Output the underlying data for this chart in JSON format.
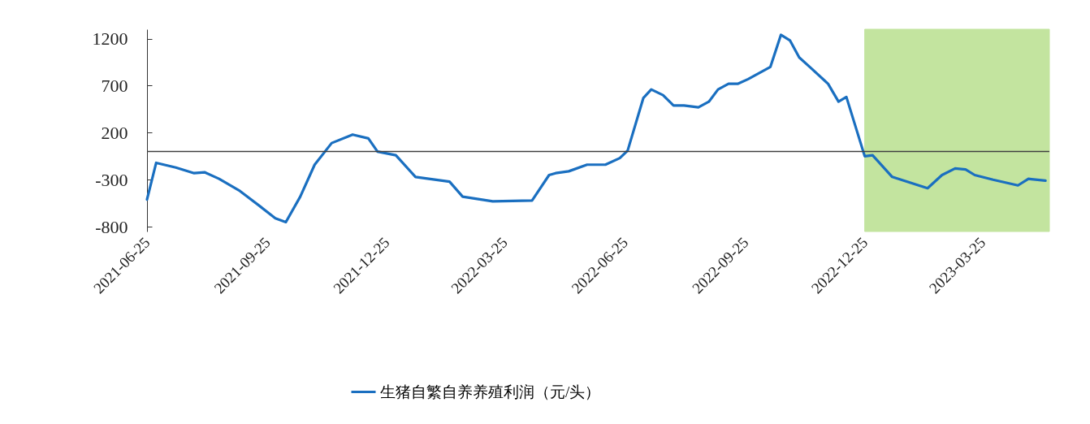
{
  "chart_data": {
    "type": "line",
    "x": [
      "2021-06-25",
      "2021-07-02",
      "2021-07-17",
      "2021-07-31",
      "2021-08-08",
      "2021-08-19",
      "2021-09-04",
      "2021-09-20",
      "2021-10-01",
      "2021-10-09",
      "2021-10-20",
      "2021-10-31",
      "2021-11-13",
      "2021-11-29",
      "2021-12-11",
      "2021-12-18",
      "2022-01-01",
      "2022-01-16",
      "2022-02-11",
      "2022-02-21",
      "2022-03-16",
      "2022-04-15",
      "2022-04-28",
      "2022-05-03",
      "2022-05-13",
      "2022-05-27",
      "2022-06-10",
      "2022-06-21",
      "2022-06-27",
      "2022-07-09",
      "2022-07-15",
      "2022-07-24",
      "2022-08-01",
      "2022-08-09",
      "2022-08-20",
      "2022-08-28",
      "2022-09-04",
      "2022-09-12",
      "2022-09-19",
      "2022-09-27",
      "2022-10-14",
      "2022-10-22",
      "2022-10-29",
      "2022-11-05",
      "2022-11-13",
      "2022-11-27",
      "2022-12-05",
      "2022-12-11",
      "2022-12-25",
      "2022-12-31",
      "2023-01-15",
      "2023-02-11",
      "2023-02-22",
      "2023-03-04",
      "2023-03-12",
      "2023-03-19",
      "2023-04-02",
      "2023-04-21",
      "2023-04-29",
      "2023-05-12"
    ],
    "series": [
      {
        "name": "生猪自繁自养养殖利润（元/头）",
        "color": "#1a6fc0",
        "values": [
          -510,
          -120,
          -170,
          -230,
          -220,
          -290,
          -420,
          -590,
          -710,
          -750,
          -480,
          -140,
          90,
          180,
          140,
          0,
          -40,
          -270,
          -320,
          -480,
          -530,
          -520,
          -250,
          -230,
          -210,
          -140,
          -140,
          -70,
          10,
          570,
          660,
          600,
          490,
          490,
          470,
          530,
          660,
          720,
          720,
          770,
          900,
          1240,
          1180,
          1000,
          900,
          720,
          530,
          580,
          -50,
          -40,
          -270,
          -390,
          -250,
          -180,
          -190,
          -250,
          -300,
          -360,
          -290,
          -310
        ]
      }
    ],
    "xlim": [
      "2021-06-25",
      "2023-05-15"
    ],
    "xticks": [
      "2021-06-25",
      "2021-09-25",
      "2021-12-25",
      "2022-03-25",
      "2022-06-25",
      "2022-09-25",
      "2022-12-25",
      "2023-03-25"
    ],
    "ylim": [
      -850,
      1300
    ],
    "yticks": [
      -800,
      -300,
      200,
      700,
      1200
    ],
    "ref_lines": [
      {
        "axis": "y",
        "value": 0,
        "color": "#404040"
      }
    ],
    "bands": [
      {
        "axis": "x",
        "from": "2022-12-25",
        "to": "2023-05-15",
        "color": "#b9e08f"
      }
    ],
    "legend": "bottom",
    "grid": false,
    "marker": "none",
    "line_style": "solid"
  }
}
